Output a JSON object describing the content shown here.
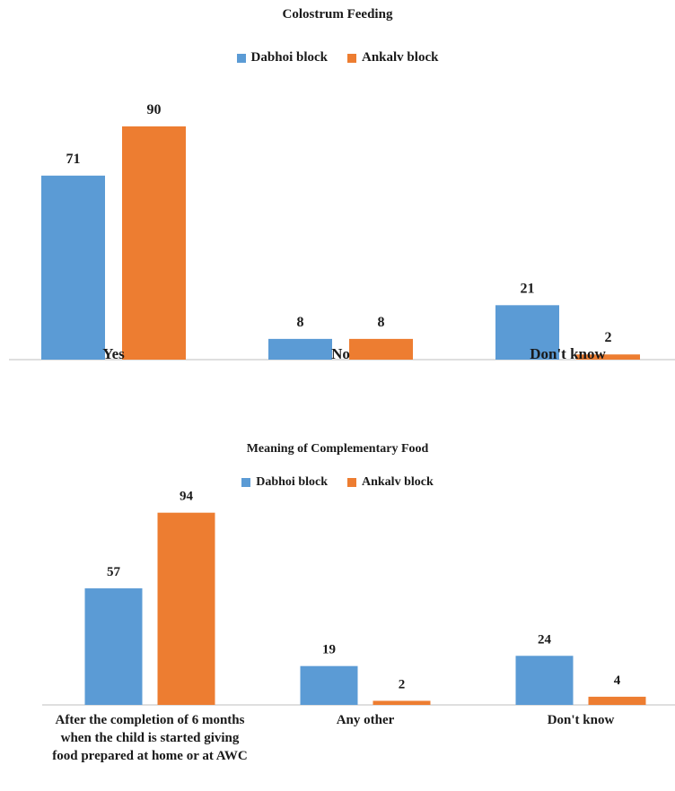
{
  "chart_data": [
    {
      "type": "bar",
      "title": "Colostrum  Feeding",
      "categories": [
        "Yes",
        "No",
        "Don't know"
      ],
      "series": [
        {
          "name": "Dabhoi block",
          "values": [
            71,
            8,
            21
          ],
          "color": "#5b9bd5"
        },
        {
          "name": "Ankalv block",
          "values": [
            90,
            8,
            2
          ],
          "color": "#ed7d31"
        }
      ],
      "xlabel": "",
      "ylabel": "",
      "ylim": [
        0,
        100
      ],
      "grid": false,
      "legend": "top-center"
    },
    {
      "type": "bar",
      "title": "Meaning of Complementary  Food",
      "categories": [
        "After the completion of 6 months when the child is started giving food prepared at home or at AWC",
        "Any other",
        "Don't know"
      ],
      "series": [
        {
          "name": "Dabhoi block",
          "values": [
            57,
            19,
            24
          ],
          "color": "#5b9bd5"
        },
        {
          "name": "Ankalv block",
          "values": [
            94,
            2,
            4
          ],
          "color": "#ed7d31"
        }
      ],
      "xlabel": "",
      "ylabel": "",
      "ylim": [
        0,
        100
      ],
      "grid": false,
      "legend": "top-center"
    }
  ]
}
